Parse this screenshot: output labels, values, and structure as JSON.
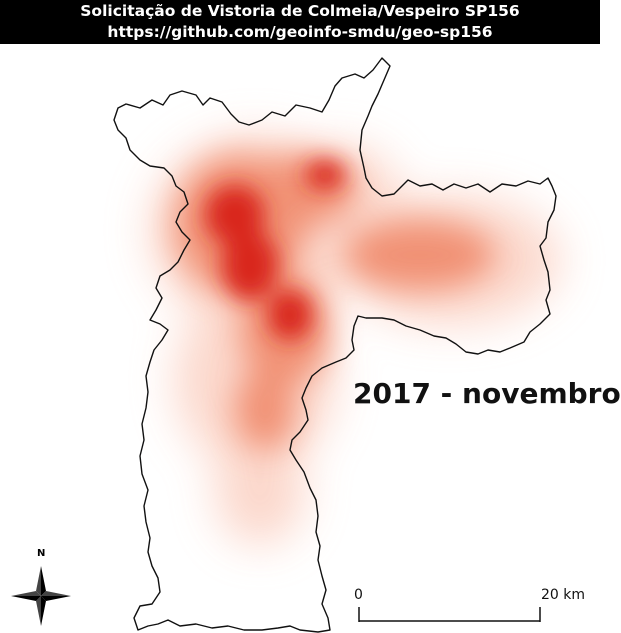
{
  "header": {
    "title": "Solicitação de Vistoria de Colmeia/Vespeiro SP156",
    "url": "https://github.com/geoinfo-smdu/geo-sp156"
  },
  "map": {
    "period_label": "2017 - novembro",
    "layer_type": "heatmap",
    "colors": {
      "boundary": "#111111",
      "heat_low": "#fbd0c2",
      "heat_mid": "#f08a6c",
      "heat_high": "#d9261c"
    }
  },
  "scale_bar": {
    "start_label": "0",
    "end_label": "20 km"
  },
  "north_arrow": {
    "label": "N",
    "icon": "compass-rose-icon"
  }
}
